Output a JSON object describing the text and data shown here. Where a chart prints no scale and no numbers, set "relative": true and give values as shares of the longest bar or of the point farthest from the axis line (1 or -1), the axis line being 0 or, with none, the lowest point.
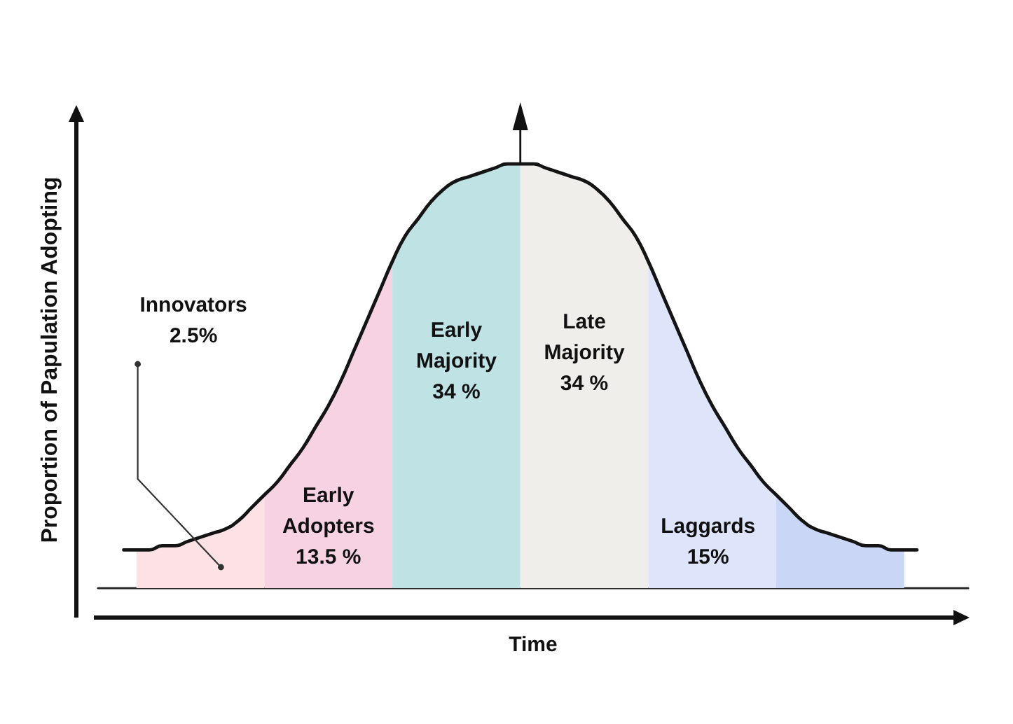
{
  "chart_data": {
    "type": "area",
    "relative": true,
    "xlabel": "Time",
    "ylabel": "Proportion of Papulation Adopting",
    "categories": [
      null,
      null,
      null,
      null,
      null,
      null,
      null,
      null,
      null,
      null,
      null,
      null,
      null,
      null,
      null,
      null,
      null,
      null,
      null,
      null,
      null,
      null,
      null,
      null,
      null,
      null,
      null,
      null,
      null,
      null,
      null,
      null,
      null,
      null,
      null,
      null,
      null,
      null,
      null,
      null,
      null,
      null,
      null,
      null,
      null,
      null,
      null,
      null,
      null,
      null,
      null,
      null,
      null,
      null,
      null,
      null,
      null,
      null,
      null,
      null,
      null,
      null,
      null,
      null,
      null,
      null,
      null,
      null,
      null
    ],
    "series": [
      {
        "color": "#fce1e5",
        "values": [
          null,
          null,
          null,
          0.09,
          0.09,
          0.1,
          0.1,
          0.11,
          0.12,
          0.13,
          0.14,
          0.16,
          0.19,
          0.22,
          null,
          null,
          null,
          null,
          null,
          null,
          null,
          null,
          null,
          null,
          null,
          null,
          null,
          null,
          null,
          null,
          null,
          null,
          null,
          null,
          null,
          null,
          null,
          null,
          null,
          null,
          null,
          null,
          null,
          null,
          null,
          null,
          null,
          null,
          null,
          null,
          null,
          null,
          null,
          null,
          null,
          null,
          null,
          null,
          null,
          null,
          null,
          null,
          null,
          null,
          null,
          null,
          null,
          null,
          null
        ]
      },
      {
        "color": "#f6d2e2",
        "values": [
          null,
          null,
          null,
          null,
          null,
          null,
          null,
          null,
          null,
          null,
          null,
          null,
          null,
          0.22,
          0.25,
          0.29,
          0.33,
          0.38,
          0.43,
          0.49,
          0.56,
          0.63,
          0.7,
          0.77,
          null,
          null,
          null,
          null,
          null,
          null,
          null,
          null,
          null,
          null,
          null,
          null,
          null,
          null,
          null,
          null,
          null,
          null,
          null,
          null,
          null,
          null,
          null,
          null,
          null,
          null,
          null,
          null,
          null,
          null,
          null,
          null,
          null,
          null,
          null,
          null,
          null,
          null,
          null,
          null,
          null,
          null,
          null,
          null,
          null
        ]
      },
      {
        "color": "#bfe2e5",
        "values": [
          null,
          null,
          null,
          null,
          null,
          null,
          null,
          null,
          null,
          null,
          null,
          null,
          null,
          null,
          null,
          null,
          null,
          null,
          null,
          null,
          null,
          null,
          null,
          0.77,
          0.83,
          0.87,
          0.91,
          0.94,
          0.96,
          0.97,
          0.98,
          0.99,
          1,
          1,
          null,
          null,
          null,
          null,
          null,
          null,
          null,
          null,
          null,
          null,
          null,
          null,
          null,
          null,
          null,
          null,
          null,
          null,
          null,
          null,
          null,
          null,
          null,
          null,
          null,
          null,
          null,
          null,
          null,
          null,
          null,
          null,
          null,
          null,
          null
        ]
      },
      {
        "color": "#efeeea",
        "values": [
          null,
          null,
          null,
          null,
          null,
          null,
          null,
          null,
          null,
          null,
          null,
          null,
          null,
          null,
          null,
          null,
          null,
          null,
          null,
          null,
          null,
          null,
          null,
          null,
          null,
          null,
          null,
          null,
          null,
          null,
          null,
          null,
          null,
          1,
          1,
          0.99,
          0.98,
          0.97,
          0.96,
          0.94,
          0.91,
          0.87,
          0.83,
          0.77,
          null,
          null,
          null,
          null,
          null,
          null,
          null,
          null,
          null,
          null,
          null,
          null,
          null,
          null,
          null,
          null,
          null,
          null,
          null,
          null,
          null,
          null,
          null,
          null,
          null
        ]
      },
      {
        "color": "#dee4fa",
        "values": [
          null,
          null,
          null,
          null,
          null,
          null,
          null,
          null,
          null,
          null,
          null,
          null,
          null,
          null,
          null,
          null,
          null,
          null,
          null,
          null,
          null,
          null,
          null,
          null,
          null,
          null,
          null,
          null,
          null,
          null,
          null,
          null,
          null,
          null,
          null,
          null,
          null,
          null,
          null,
          null,
          null,
          null,
          null,
          0.77,
          0.7,
          0.63,
          0.56,
          0.49,
          0.43,
          0.38,
          0.33,
          0.29,
          0.25,
          0.22,
          null,
          null,
          null,
          null,
          null,
          null,
          null,
          null,
          null,
          null,
          null,
          null,
          null,
          null,
          null
        ]
      },
      {
        "color": "#c9d6f6",
        "values": [
          null,
          null,
          null,
          null,
          null,
          null,
          null,
          null,
          null,
          null,
          null,
          null,
          null,
          null,
          null,
          null,
          null,
          null,
          null,
          null,
          null,
          null,
          null,
          null,
          null,
          null,
          null,
          null,
          null,
          null,
          null,
          null,
          null,
          null,
          null,
          null,
          null,
          null,
          null,
          null,
          null,
          null,
          null,
          null,
          null,
          null,
          null,
          null,
          null,
          null,
          null,
          null,
          null,
          0.22,
          0.19,
          0.16,
          0.14,
          0.13,
          0.12,
          0.11,
          0.1,
          0.1,
          0.09,
          0.09,
          null,
          null,
          null,
          null,
          null
        ]
      },
      {
        "type": "line",
        "color": "#141414",
        "values": [
          null,
          null,
          0.09,
          0.09,
          0.09,
          0.1,
          0.1,
          0.11,
          0.12,
          0.13,
          0.14,
          0.16,
          0.19,
          0.22,
          0.25,
          0.29,
          0.33,
          0.38,
          0.43,
          0.49,
          0.56,
          0.63,
          0.7,
          0.77,
          0.83,
          0.87,
          0.91,
          0.94,
          0.96,
          0.97,
          0.98,
          0.99,
          1,
          1,
          1,
          0.99,
          0.98,
          0.97,
          0.96,
          0.94,
          0.91,
          0.87,
          0.83,
          0.77,
          0.7,
          0.63,
          0.56,
          0.49,
          0.43,
          0.38,
          0.33,
          0.29,
          0.25,
          0.22,
          0.19,
          0.16,
          0.14,
          0.13,
          0.12,
          0.11,
          0.1,
          0.1,
          0.09,
          0.09,
          0.09,
          null,
          null,
          null,
          null
        ]
      }
    ],
    "annotations": [
      "Innovators\n2.5%",
      "Early\nAdopters\n13.5 %",
      "Early\nMajority\n34 %",
      "Late\nMajority\n34 %",
      "Laggards\n15%"
    ]
  }
}
